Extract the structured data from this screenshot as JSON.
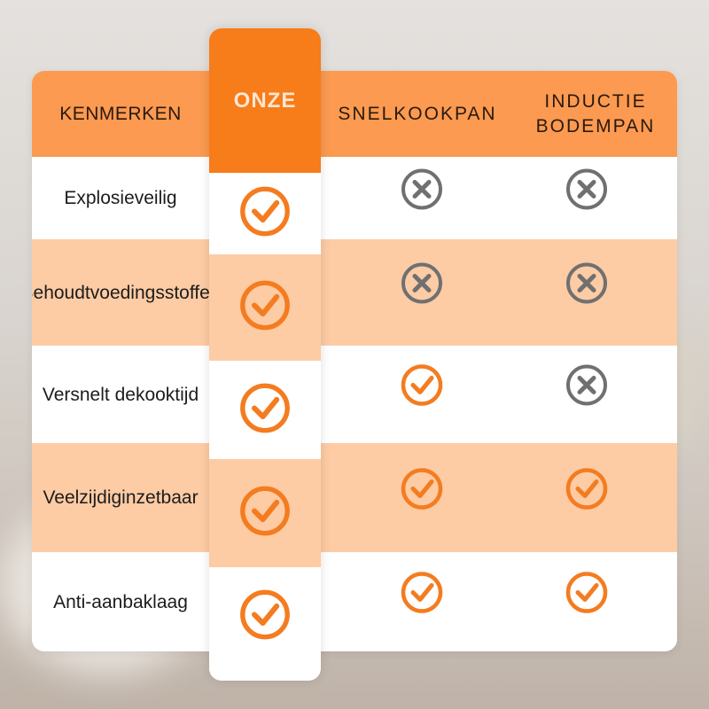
{
  "colors": {
    "header": "#fb9a50",
    "onze_header": "#f77c1a",
    "peach_row": "#fdcba4",
    "check": "#f47c20",
    "cross": "#707070"
  },
  "headers": {
    "features": "KENMERKEN",
    "ours": "ONZE",
    "col2": "SNELKOOKPAN",
    "col3_line1": "INDUCTIE",
    "col3_line2": "BODEMPAN"
  },
  "rows": [
    {
      "feature": [
        "Explosieveilig"
      ],
      "ours": "check-icon",
      "col2": "cross-icon",
      "col3": "cross-icon"
    },
    {
      "feature": [
        "Behoudt",
        "voedingsstoffen"
      ],
      "ours": "check-icon",
      "col2": "cross-icon",
      "col3": "cross-icon"
    },
    {
      "feature": [
        "Versnelt de",
        "kooktijd"
      ],
      "ours": "check-icon",
      "col2": "check-icon",
      "col3": "cross-icon"
    },
    {
      "feature": [
        "Veelzijdig",
        "inzetbaar"
      ],
      "ours": "check-icon",
      "col2": "check-icon",
      "col3": "check-icon"
    },
    {
      "feature": [
        "Anti-aanbaklaag"
      ],
      "ours": "check-icon",
      "col2": "check-icon",
      "col3": "check-icon"
    }
  ]
}
